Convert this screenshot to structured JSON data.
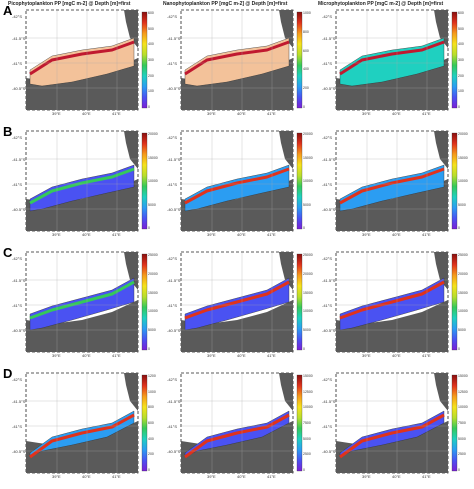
{
  "column_titles": [
    "Picophytoplankton PP [mgC m-2] @ Depth [m]=first",
    "Nanophytoplankton PP [mgC m-2] @ Depth [m]=first",
    "Microphytoplankton PP [mgC m-2] @ Depth [m]=first"
  ],
  "row_letters": [
    "A",
    "B",
    "C",
    "D"
  ],
  "lat_labels": [
    "-42°S",
    "-41.5°S",
    "-41°S",
    "-40.5°S"
  ],
  "lon_labels": [
    "39°E",
    "40°E",
    "41°E"
  ],
  "colormap": [
    "#7a1fd6",
    "#4a52f2",
    "#2b9df2",
    "#1fd0c0",
    "#35c95a",
    "#b8de2c",
    "#f5e21c",
    "#f59a1c",
    "#e0321c",
    "#8a0f0f"
  ],
  "land_color": "#5a5a5a",
  "rows": [
    {
      "letter": "A",
      "panels": [
        {
          "ticks": [
            "600",
            "500",
            "400",
            "300",
            "200",
            "100",
            "0"
          ],
          "fill": "#f3c29a",
          "accent": "#c0192f"
        },
        {
          "ticks": [
            "1000",
            "800",
            "600",
            "400",
            "200",
            "0"
          ],
          "fill": "#f3c29a",
          "accent": "#c0192f"
        },
        {
          "ticks": [
            "600",
            "500",
            "400",
            "300",
            "200",
            "100",
            "0"
          ],
          "fill": "#1fd0c0",
          "accent": "#c0192f"
        }
      ]
    },
    {
      "letter": "B",
      "panels": [
        {
          "ticks": [
            "20000",
            "15000",
            "10000",
            "5000",
            "0"
          ],
          "fill": "#4a52f2",
          "accent": "#35c95a"
        },
        {
          "ticks": [
            "20000",
            "15000",
            "10000",
            "5000",
            "0"
          ],
          "fill": "#2b9df2",
          "accent": "#e0321c"
        },
        {
          "ticks": [
            "20000",
            "15000",
            "10000",
            "5000",
            "0"
          ],
          "fill": "#2b9df2",
          "accent": "#e0321c"
        }
      ]
    },
    {
      "letter": "C",
      "panels": [
        {
          "ticks": [
            "25000",
            "20000",
            "15000",
            "10000",
            "5000",
            "0"
          ],
          "fill": "#4a52f2",
          "accent": "#35c95a"
        },
        {
          "ticks": [
            "25000",
            "20000",
            "15000",
            "10000",
            "5000",
            "0"
          ],
          "fill": "#4a52f2",
          "accent": "#e0321c"
        },
        {
          "ticks": [
            "25000",
            "20000",
            "15000",
            "10000",
            "5000",
            "0"
          ],
          "fill": "#4a52f2",
          "accent": "#e0321c"
        }
      ]
    },
    {
      "letter": "D",
      "panels": [
        {
          "ticks": [
            "1200",
            "1000",
            "800",
            "600",
            "400",
            "200",
            "0"
          ],
          "fill": "#2b9df2",
          "accent": "#e0321c"
        },
        {
          "ticks": [
            "15000",
            "12500",
            "10000",
            "7500",
            "5000",
            "2500",
            "0"
          ],
          "fill": "#4a52f2",
          "accent": "#e0321c"
        },
        {
          "ticks": [
            "15000",
            "12500",
            "10000",
            "7500",
            "5000",
            "2500",
            "0"
          ],
          "fill": "#4a52f2",
          "accent": "#e0321c"
        }
      ]
    }
  ]
}
